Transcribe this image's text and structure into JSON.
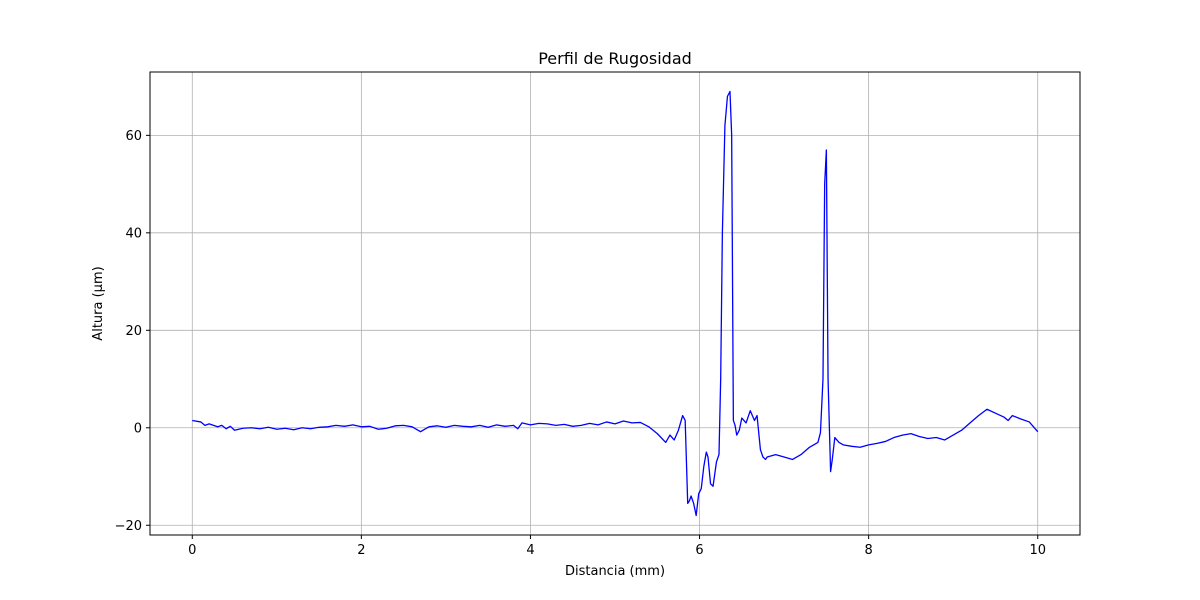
{
  "chart_data": {
    "type": "line",
    "title": "Perfil de Rugosidad",
    "xlabel": "Distancia (mm)",
    "ylabel": "Altura (µm)",
    "xlim": [
      -0.5,
      10.5
    ],
    "ylim": [
      -22,
      73
    ],
    "xticks": [
      0,
      2,
      4,
      6,
      8,
      10
    ],
    "yticks": [
      -20,
      0,
      20,
      40,
      60
    ],
    "xtick_labels": [
      "0",
      "2",
      "4",
      "6",
      "8",
      "10"
    ],
    "ytick_labels": [
      "−20",
      "0",
      "20",
      "40",
      "60"
    ],
    "grid": true,
    "series": [
      {
        "color": "#0000ff",
        "x": [
          0,
          0.1,
          0.15,
          0.2,
          0.3,
          0.35,
          0.4,
          0.45,
          0.5,
          0.55,
          0.6,
          0.7,
          0.8,
          0.9,
          1.0,
          1.1,
          1.2,
          1.3,
          1.4,
          1.5,
          1.6,
          1.7,
          1.8,
          1.9,
          2.0,
          2.1,
          2.2,
          2.3,
          2.4,
          2.5,
          2.6,
          2.7,
          2.75,
          2.8,
          2.9,
          3.0,
          3.1,
          3.2,
          3.3,
          3.4,
          3.5,
          3.6,
          3.7,
          3.8,
          3.85,
          3.9,
          4.0,
          4.1,
          4.2,
          4.3,
          4.4,
          4.5,
          4.6,
          4.7,
          4.8,
          4.9,
          5.0,
          5.1,
          5.2,
          5.3,
          5.4,
          5.5,
          5.6,
          5.65,
          5.7,
          5.75,
          5.8,
          5.83,
          5.86,
          5.88,
          5.9,
          5.93,
          5.96,
          5.99,
          6.02,
          6.05,
          6.08,
          6.1,
          6.13,
          6.16,
          6.2,
          6.23,
          6.25,
          6.27,
          6.3,
          6.33,
          6.36,
          6.38,
          6.4,
          6.42,
          6.44,
          6.47,
          6.5,
          6.55,
          6.6,
          6.65,
          6.68,
          6.72,
          6.75,
          6.78,
          6.8,
          6.9,
          7.0,
          7.1,
          7.2,
          7.3,
          7.4,
          7.43,
          7.46,
          7.48,
          7.5,
          7.52,
          7.55,
          7.57,
          7.6,
          7.65,
          7.7,
          7.8,
          7.9,
          8.0,
          8.1,
          8.2,
          8.3,
          8.4,
          8.5,
          8.6,
          8.7,
          8.8,
          8.9,
          9.0,
          9.1,
          9.2,
          9.3,
          9.4,
          9.5,
          9.6,
          9.65,
          9.7,
          9.8,
          9.9,
          10.0
        ],
        "y": [
          1.5,
          1.2,
          0.5,
          0.8,
          0.2,
          0.5,
          -0.2,
          0.3,
          -0.5,
          -0.3,
          -0.1,
          0,
          -0.2,
          0.1,
          -0.3,
          -0.1,
          -0.4,
          0,
          -0.2,
          0.1,
          0.2,
          0.5,
          0.3,
          0.6,
          0.2,
          0.3,
          -0.3,
          -0.1,
          0.4,
          0.5,
          0.2,
          -0.8,
          -0.3,
          0.2,
          0.4,
          0.1,
          0.5,
          0.3,
          0.2,
          0.5,
          0.1,
          0.6,
          0.3,
          0.5,
          -0.2,
          1.0,
          0.6,
          0.9,
          0.8,
          0.5,
          0.7,
          0.3,
          0.5,
          0.9,
          0.6,
          1.2,
          0.8,
          1.4,
          1.0,
          1.1,
          0.2,
          -1.2,
          -3.0,
          -1.5,
          -2.5,
          -0.5,
          2.5,
          1.5,
          -15.5,
          -15.0,
          -14.0,
          -15.5,
          -18.0,
          -13.5,
          -12.5,
          -8.0,
          -5.0,
          -6.0,
          -11.5,
          -12.0,
          -7.0,
          -5.5,
          10.0,
          40.0,
          62.0,
          68.0,
          69.0,
          60.0,
          1.5,
          0.5,
          -1.5,
          -0.5,
          2.0,
          1.0,
          3.5,
          1.5,
          2.5,
          -4.5,
          -6.0,
          -6.5,
          -6.0,
          -5.5,
          -6.0,
          -6.5,
          -5.5,
          -4.0,
          -3.0,
          -1.0,
          10.0,
          50.0,
          57.0,
          10.0,
          -9.0,
          -6.5,
          -2.0,
          -3.0,
          -3.5,
          -3.8,
          -4.0,
          -3.5,
          -3.2,
          -2.8,
          -2.0,
          -1.5,
          -1.2,
          -1.8,
          -2.2,
          -2.0,
          -2.5,
          -1.5,
          -0.5,
          1.0,
          2.5,
          3.8,
          3.0,
          2.2,
          1.5,
          2.5,
          1.8,
          1.2,
          -0.8
        ]
      }
    ]
  }
}
